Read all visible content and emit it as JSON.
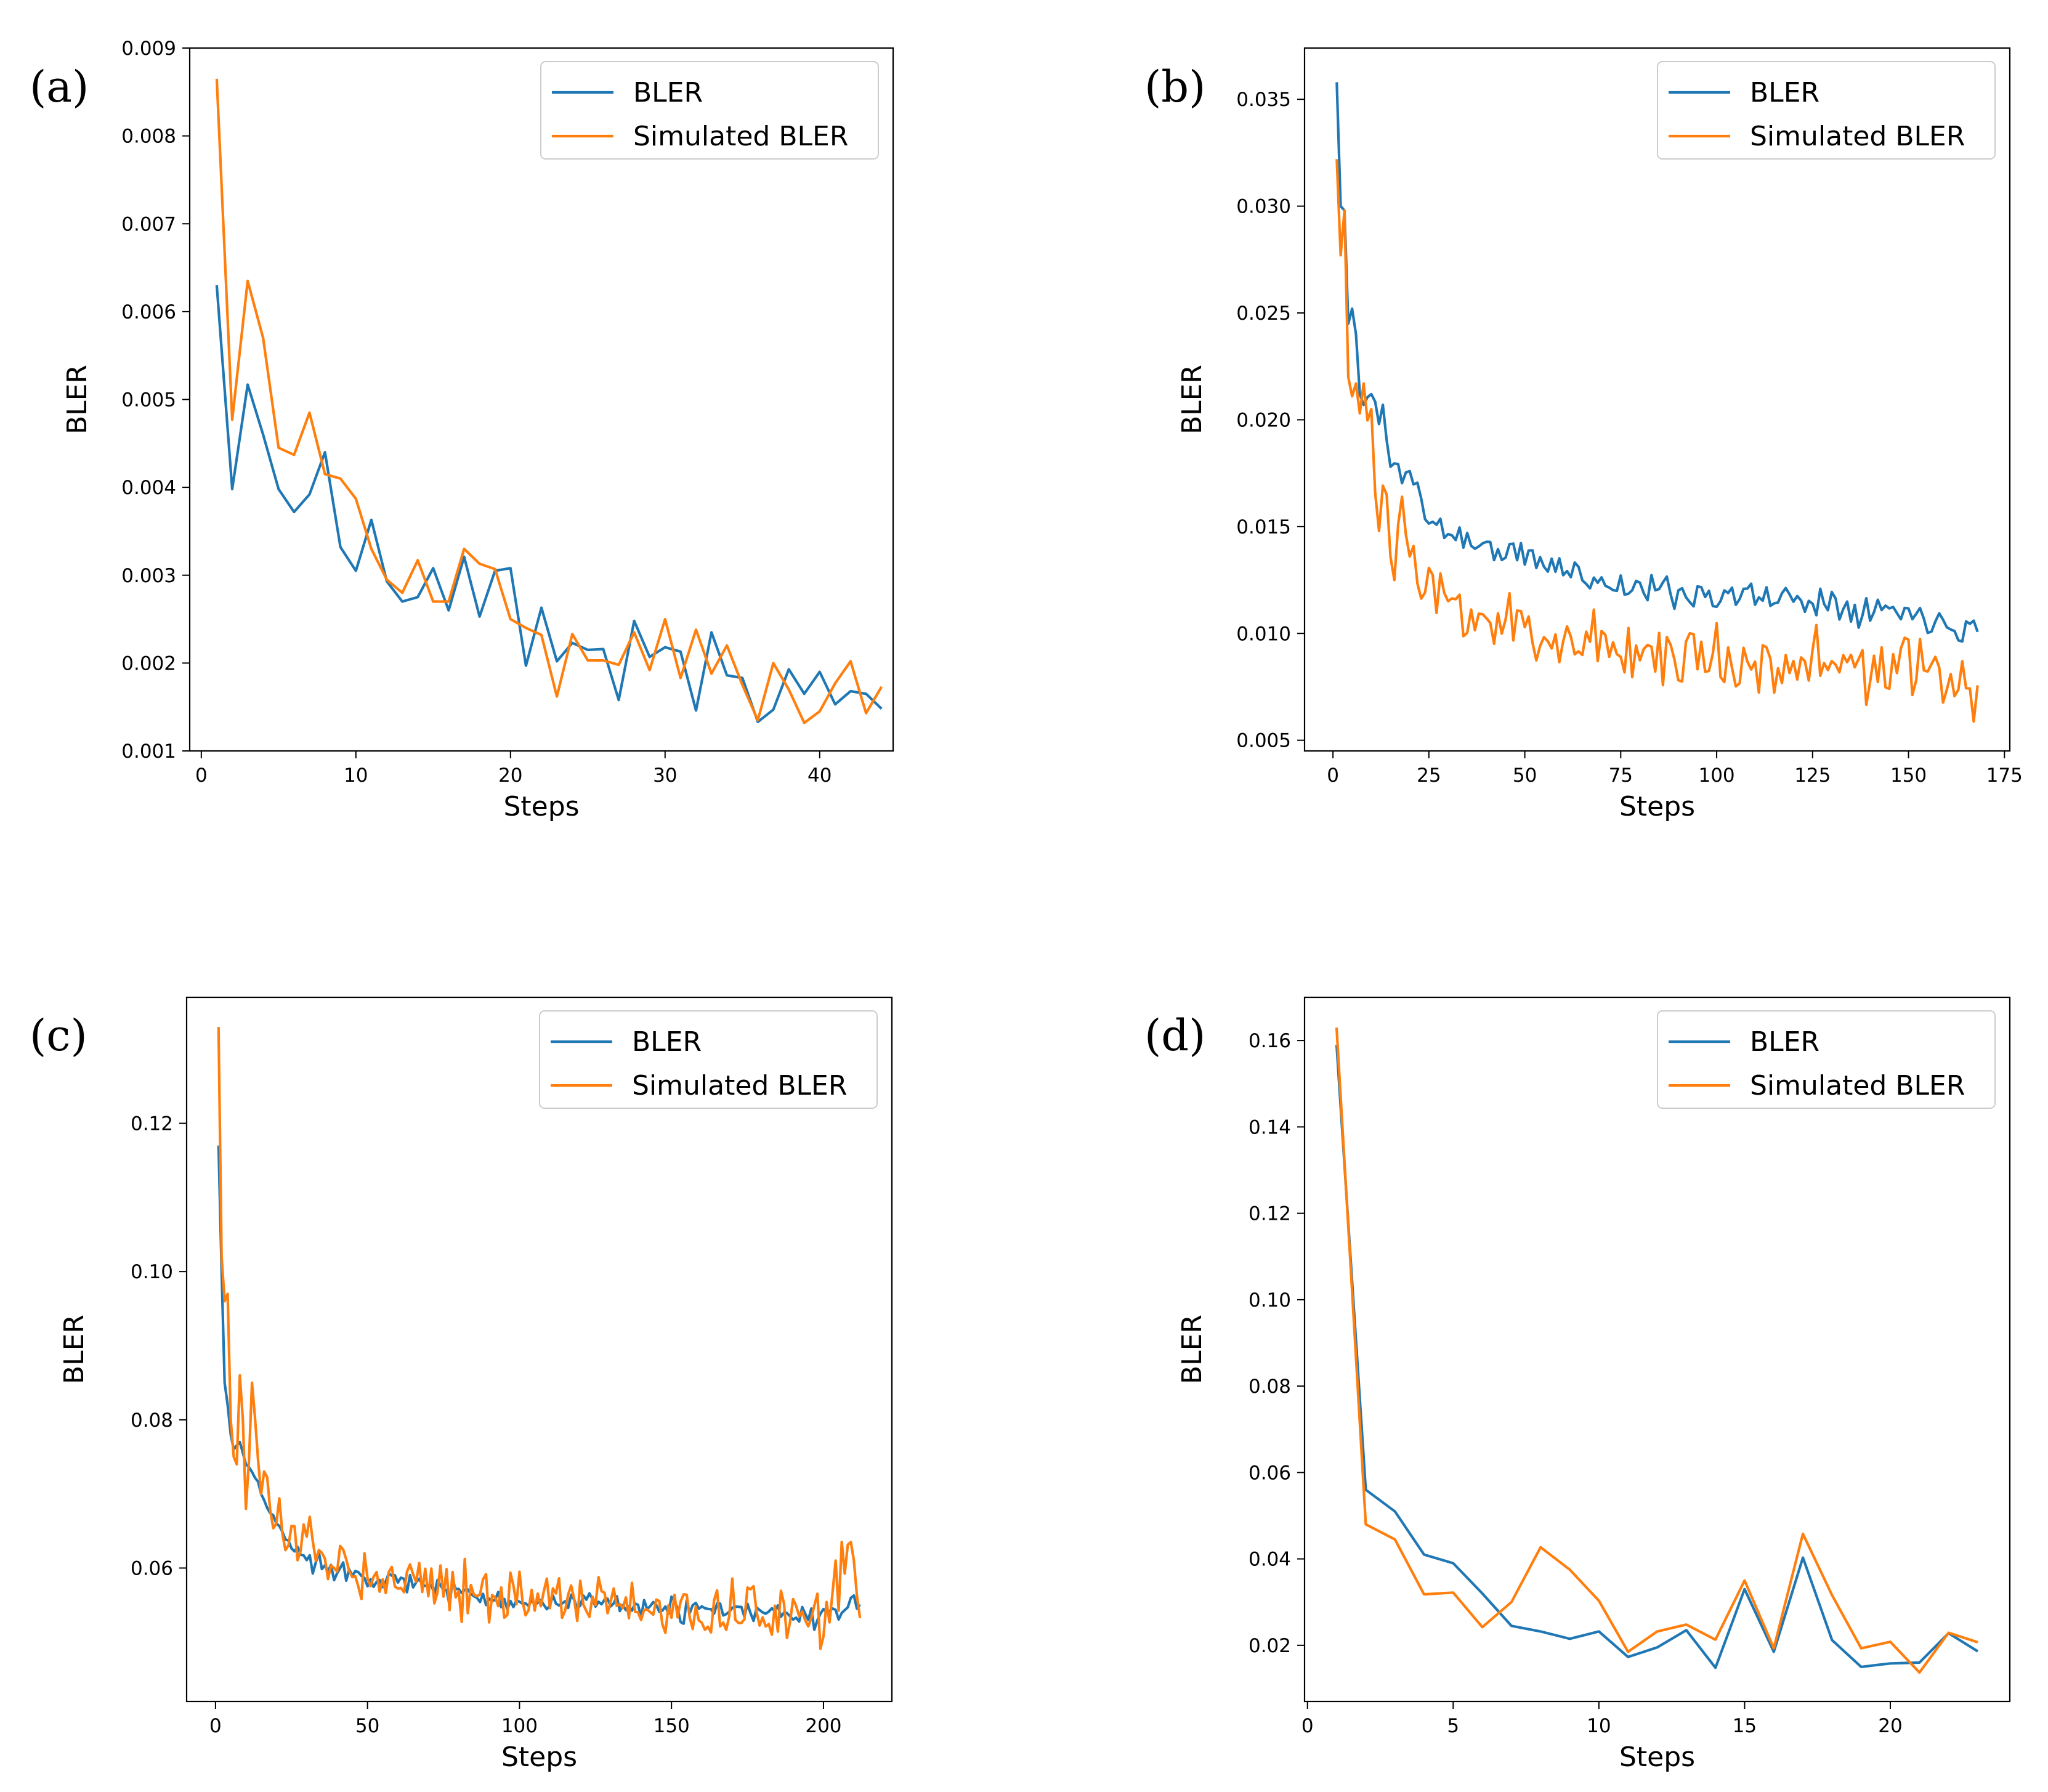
{
  "colors": {
    "bler": "#1f77b4",
    "simulated": "#ff7f0e",
    "axis": "#000000"
  },
  "chart_data": [
    {
      "type": "line",
      "panel_label": "(a)",
      "xlabel": "Steps",
      "ylabel": "BLER",
      "xlim": [
        -0.75,
        44.75
      ],
      "ylim": [
        0.001,
        0.009
      ],
      "xticks": [
        0,
        10,
        20,
        30,
        40
      ],
      "xtick_labels": [
        "0",
        "10",
        "20",
        "30",
        "40"
      ],
      "yticks": [
        0.001,
        0.002,
        0.003,
        0.004,
        0.005,
        0.006,
        0.007,
        0.008,
        0.009
      ],
      "ytick_labels": [
        "0.001",
        "0.002",
        "0.003",
        "0.004",
        "0.005",
        "0.006",
        "0.007",
        "0.008",
        "0.009"
      ],
      "legend": {
        "position": "top-right",
        "entries": [
          "BLER",
          "Simulated BLER"
        ]
      },
      "series": [
        {
          "name": "BLER",
          "x": [
            1,
            2,
            3,
            4,
            5,
            6,
            7,
            8,
            9,
            10,
            11,
            12,
            13,
            14,
            15,
            16,
            17,
            18,
            19,
            20,
            21,
            22,
            23,
            24,
            25,
            26,
            27,
            28,
            29,
            30,
            31,
            32,
            33,
            34,
            35,
            36,
            37,
            38,
            39,
            40,
            41,
            42,
            43,
            44
          ],
          "values": [
            0.0063,
            0.00398,
            0.00517,
            0.0046,
            0.00398,
            0.00372,
            0.00392,
            0.0044,
            0.00332,
            0.00305,
            0.00363,
            0.00293,
            0.0027,
            0.00275,
            0.00308,
            0.0026,
            0.00321,
            0.00253,
            0.00305,
            0.00308,
            0.00197,
            0.00263,
            0.00202,
            0.00223,
            0.00215,
            0.00216,
            0.00158,
            0.00248,
            0.00207,
            0.00218,
            0.00213,
            0.00146,
            0.00235,
            0.00186,
            0.00183,
            0.00133,
            0.00147,
            0.00193,
            0.00165,
            0.0019,
            0.00153,
            0.00168,
            0.00165,
            0.00148
          ]
        },
        {
          "name": "Simulated BLER",
          "x": [
            1,
            2,
            3,
            4,
            5,
            6,
            7,
            8,
            9,
            10,
            11,
            12,
            13,
            14,
            15,
            16,
            17,
            18,
            19,
            20,
            21,
            22,
            23,
            24,
            25,
            26,
            27,
            28,
            29,
            30,
            31,
            32,
            33,
            34,
            35,
            36,
            37,
            38,
            39,
            40,
            41,
            42,
            43,
            44
          ],
          "values": [
            0.00865,
            0.00477,
            0.00635,
            0.0057,
            0.00445,
            0.00437,
            0.00485,
            0.00415,
            0.0041,
            0.00387,
            0.0033,
            0.00295,
            0.0028,
            0.00317,
            0.0027,
            0.0027,
            0.0033,
            0.00313,
            0.00307,
            0.0025,
            0.0024,
            0.00232,
            0.00162,
            0.00233,
            0.00203,
            0.00203,
            0.00198,
            0.00235,
            0.00192,
            0.0025,
            0.00183,
            0.00238,
            0.00188,
            0.0022,
            0.00175,
            0.00135,
            0.002,
            0.0017,
            0.00132,
            0.00145,
            0.00177,
            0.00202,
            0.00143,
            0.00173
          ]
        }
      ]
    },
    {
      "type": "line",
      "panel_label": "(b)",
      "xlabel": "Steps",
      "ylabel": "BLER",
      "xlim": [
        -7.4,
        176.4
      ],
      "ylim": [
        0.0045,
        0.0374
      ],
      "xticks": [
        0,
        25,
        50,
        75,
        100,
        125,
        150,
        175
      ],
      "xtick_labels": [
        "0",
        "25",
        "50",
        "75",
        "100",
        "125",
        "150",
        "175"
      ],
      "yticks": [
        0.005,
        0.01,
        0.015,
        0.02,
        0.025,
        0.03,
        0.035
      ],
      "ytick_labels": [
        "0.005",
        "0.010",
        "0.015",
        "0.020",
        "0.025",
        "0.030",
        "0.035"
      ],
      "legend": {
        "position": "top-right",
        "entries": [
          "BLER",
          "Simulated BLER"
        ]
      },
      "generated_series": true,
      "series": [
        {
          "name": "BLER",
          "x_start": 1,
          "x_end": 168,
          "anchors": [
            [
              1,
              0.0358
            ],
            [
              2,
              0.03
            ],
            [
              3,
              0.0298
            ],
            [
              4,
              0.0245
            ],
            [
              5,
              0.0252
            ],
            [
              6,
              0.024
            ],
            [
              7,
              0.0212
            ],
            [
              8,
              0.0207
            ],
            [
              10,
              0.0212
            ],
            [
              12,
              0.0198
            ],
            [
              13,
              0.0207
            ],
            [
              15,
              0.0178
            ],
            [
              20,
              0.0176
            ],
            [
              25,
              0.0152
            ],
            [
              30,
              0.0148
            ],
            [
              40,
              0.014
            ],
            [
              50,
              0.0136
            ],
            [
              60,
              0.013
            ],
            [
              75,
              0.0122
            ],
            [
              100,
              0.0118
            ],
            [
              125,
              0.0116
            ],
            [
              150,
              0.011
            ],
            [
              168,
              0.0102
            ]
          ],
          "noise": 0.0011,
          "seed": 11
        },
        {
          "name": "Simulated BLER",
          "x_start": 1,
          "x_end": 168,
          "anchors": [
            [
              1,
              0.0322
            ],
            [
              2,
              0.0277
            ],
            [
              3,
              0.0298
            ],
            [
              4,
              0.022
            ],
            [
              5,
              0.0211
            ],
            [
              6,
              0.0217
            ],
            [
              7,
              0.0203
            ],
            [
              8,
              0.0217
            ],
            [
              10,
              0.0205
            ],
            [
              12,
              0.0148
            ],
            [
              14,
              0.0165
            ],
            [
              16,
              0.0125
            ],
            [
              18,
              0.0164
            ],
            [
              20,
              0.0136
            ],
            [
              25,
              0.0113
            ],
            [
              30,
              0.0115
            ],
            [
              40,
              0.0106
            ],
            [
              50,
              0.0102
            ],
            [
              60,
              0.0098
            ],
            [
              75,
              0.0093
            ],
            [
              100,
              0.0088
            ],
            [
              125,
              0.0086
            ],
            [
              150,
              0.0082
            ],
            [
              168,
              0.0077
            ]
          ],
          "noise": 0.0024,
          "seed": 23
        }
      ]
    },
    {
      "type": "line",
      "panel_label": "(c)",
      "xlabel": "Steps",
      "ylabel": "BLER",
      "xlim": [
        -9.5,
        222.5
      ],
      "ylim": [
        0.042,
        0.137
      ],
      "xticks": [
        0,
        50,
        100,
        150,
        200
      ],
      "xtick_labels": [
        "0",
        "50",
        "100",
        "150",
        "200"
      ],
      "yticks": [
        0.06,
        0.08,
        0.1,
        0.12
      ],
      "ytick_labels": [
        "0.06",
        "0.08",
        "0.10",
        "0.12"
      ],
      "legend": {
        "position": "top-right",
        "entries": [
          "BLER",
          "Simulated BLER"
        ]
      },
      "generated_series": true,
      "series": [
        {
          "name": "BLER",
          "x_start": 1,
          "x_end": 212,
          "anchors": [
            [
              1,
              0.117
            ],
            [
              2,
              0.1
            ],
            [
              3,
              0.085
            ],
            [
              4,
              0.082
            ],
            [
              5,
              0.078
            ],
            [
              6,
              0.076
            ],
            [
              8,
              0.077
            ],
            [
              10,
              0.074
            ],
            [
              15,
              0.07
            ],
            [
              20,
              0.066
            ],
            [
              25,
              0.063
            ],
            [
              30,
              0.061
            ],
            [
              40,
              0.06
            ],
            [
              50,
              0.059
            ],
            [
              75,
              0.057
            ],
            [
              100,
              0.0555
            ],
            [
              125,
              0.055
            ],
            [
              150,
              0.0545
            ],
            [
              175,
              0.054
            ],
            [
              200,
              0.0535
            ],
            [
              212,
              0.055
            ]
          ],
          "noise": 0.0022,
          "seed": 37
        },
        {
          "name": "Simulated BLER",
          "x_start": 1,
          "x_end": 212,
          "anchors": [
            [
              1,
              0.133
            ],
            [
              2,
              0.102
            ],
            [
              3,
              0.096
            ],
            [
              4,
              0.097
            ],
            [
              5,
              0.08
            ],
            [
              6,
              0.075
            ],
            [
              7,
              0.074
            ],
            [
              8,
              0.086
            ],
            [
              9,
              0.08
            ],
            [
              10,
              0.068
            ],
            [
              12,
              0.085
            ],
            [
              15,
              0.07
            ],
            [
              20,
              0.066
            ],
            [
              25,
              0.064
            ],
            [
              30,
              0.063
            ],
            [
              40,
              0.061
            ],
            [
              50,
              0.0595
            ],
            [
              75,
              0.058
            ],
            [
              100,
              0.056
            ],
            [
              125,
              0.0555
            ],
            [
              150,
              0.054
            ],
            [
              175,
              0.054
            ],
            [
              200,
              0.0535
            ],
            [
              210,
              0.063
            ],
            [
              212,
              0.055
            ]
          ],
          "noise": 0.0055,
          "seed": 53
        }
      ]
    },
    {
      "type": "line",
      "panel_label": "(d)",
      "xlabel": "Steps",
      "ylabel": "BLER",
      "xlim": [
        -0.1,
        24.1
      ],
      "ylim": [
        0.007,
        0.17
      ],
      "xticks": [
        0,
        5,
        10,
        15,
        20
      ],
      "xtick_labels": [
        "0",
        "5",
        "10",
        "15",
        "20"
      ],
      "yticks": [
        0.02,
        0.04,
        0.06,
        0.08,
        0.1,
        0.12,
        0.14,
        0.16
      ],
      "ytick_labels": [
        "0.02",
        "0.04",
        "0.06",
        "0.08",
        "0.10",
        "0.12",
        "0.14",
        "0.16"
      ],
      "legend": {
        "position": "top-right",
        "entries": [
          "BLER",
          "Simulated BLER"
        ]
      },
      "series": [
        {
          "name": "BLER",
          "x": [
            1,
            2,
            3,
            4,
            5,
            6,
            7,
            8,
            9,
            10,
            11,
            12,
            13,
            14,
            15,
            16,
            17,
            18,
            19,
            20,
            21,
            22,
            23
          ],
          "values": [
            0.159,
            0.056,
            0.051,
            0.041,
            0.039,
            0.032,
            0.0245,
            0.0232,
            0.0215,
            0.0232,
            0.0173,
            0.0195,
            0.0235,
            0.0148,
            0.033,
            0.0185,
            0.0403,
            0.0212,
            0.015,
            0.0158,
            0.016,
            0.0228,
            0.0186
          ]
        },
        {
          "name": "Simulated BLER",
          "x": [
            1,
            2,
            3,
            4,
            5,
            6,
            7,
            8,
            9,
            10,
            11,
            12,
            13,
            14,
            15,
            16,
            17,
            18,
            19,
            20,
            21,
            22,
            23
          ],
          "values": [
            0.163,
            0.048,
            0.0445,
            0.0318,
            0.0322,
            0.0242,
            0.03,
            0.0427,
            0.0375,
            0.0303,
            0.0185,
            0.0232,
            0.0248,
            0.0213,
            0.035,
            0.0193,
            0.0458,
            0.0316,
            0.0193,
            0.0208,
            0.0137,
            0.0229,
            0.0207
          ]
        }
      ]
    }
  ]
}
